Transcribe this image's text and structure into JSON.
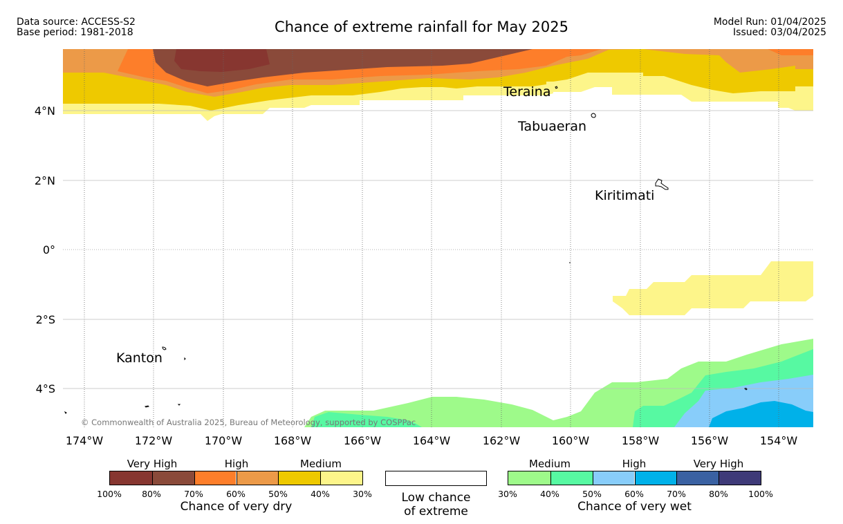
{
  "header": {
    "left_line1": "Data source: ACCESS-S2",
    "left_line2": "Base period: 1981-2018",
    "title": "Chance of extreme rainfall for May 2025",
    "right_line1": "Model Run: 01/04/2025",
    "right_line2": "Issued: 03/04/2025"
  },
  "map": {
    "lon_labels": [
      "174°W",
      "172°W",
      "170°W",
      "168°W",
      "166°W",
      "164°W",
      "162°W",
      "160°W",
      "158°W",
      "156°W",
      "154°W"
    ],
    "lat_labels": [
      "4°N",
      "2°N",
      "0°",
      "2°S",
      "4°S"
    ],
    "places": [
      "Teraina",
      "Tabuaeran",
      "Kiritimati",
      "Kanton"
    ],
    "copyright": "© Commonwealth of Australia 2025, Bureau of Meteorology, supported by COSPPac"
  },
  "legend": {
    "dry": {
      "group_labels": [
        "Very High",
        "High",
        "Medium"
      ],
      "colors": [
        "#873630",
        "#8a4a3a",
        "#fd7e2a",
        "#ec9a48",
        "#eec900",
        "#fdf58a"
      ],
      "ticks": [
        "100%",
        "80%",
        "70%",
        "60%",
        "50%",
        "40%",
        "30%"
      ],
      "title": "Chance of very dry"
    },
    "low": {
      "line1": "Low chance",
      "line2": "of extreme"
    },
    "wet": {
      "group_labels": [
        "Medium",
        "High",
        "Very High"
      ],
      "colors": [
        "#9efa8a",
        "#57f9a2",
        "#88cdfa",
        "#00b1e9",
        "#3a61a2",
        "#3e3a78"
      ],
      "ticks": [
        "30%",
        "40%",
        "50%",
        "60%",
        "70%",
        "80%",
        "100%"
      ],
      "title": "Chance of very wet"
    }
  }
}
